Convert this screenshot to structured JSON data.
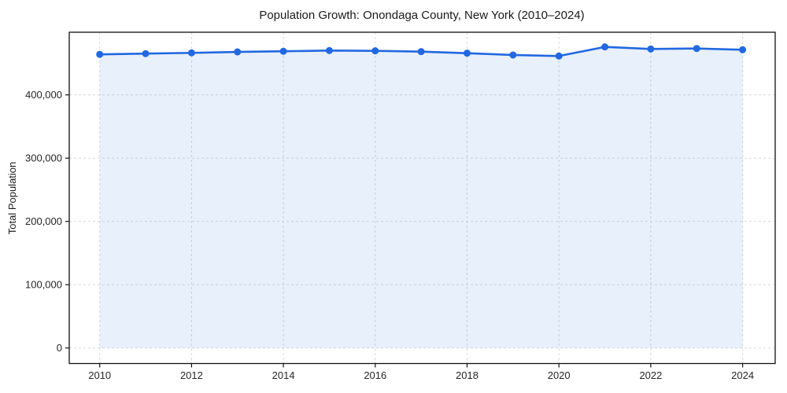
{
  "title": "Population Growth: Onondaga County, New York (2010–2024)",
  "chart_data": {
    "type": "area",
    "title": "Population Growth: Onondaga County, New York (2010–2024)",
    "xlabel": "",
    "ylabel": "Total Population",
    "x": [
      2010,
      2011,
      2012,
      2013,
      2014,
      2015,
      2016,
      2017,
      2018,
      2019,
      2020,
      2021,
      2022,
      2023,
      2024
    ],
    "series": [
      {
        "name": "Total Population",
        "values": [
          464000,
          465200,
          466400,
          467900,
          468900,
          470100,
          469600,
          468400,
          465900,
          463000,
          461400,
          475800,
          472500,
          473300,
          471300
        ]
      }
    ],
    "xticks": [
      2010,
      2012,
      2014,
      2016,
      2018,
      2020,
      2022,
      2024
    ],
    "yticks": [
      0,
      100000,
      200000,
      300000,
      400000
    ],
    "ytick_labels": [
      "0",
      "100,000",
      "200,000",
      "300,000",
      "400,000"
    ],
    "xlim": [
      2009.3,
      2024.7
    ],
    "ylim": [
      0,
      500000
    ],
    "grid": true,
    "grid_style": "dashed",
    "legend": false,
    "colors": {
      "line": "#2268e0",
      "marker": "#2268e0",
      "fill": "rgba(34, 104, 224, 0.10)",
      "grid": "#d9d9d9",
      "spine": "#111111",
      "text": "#1a1a1a"
    }
  }
}
